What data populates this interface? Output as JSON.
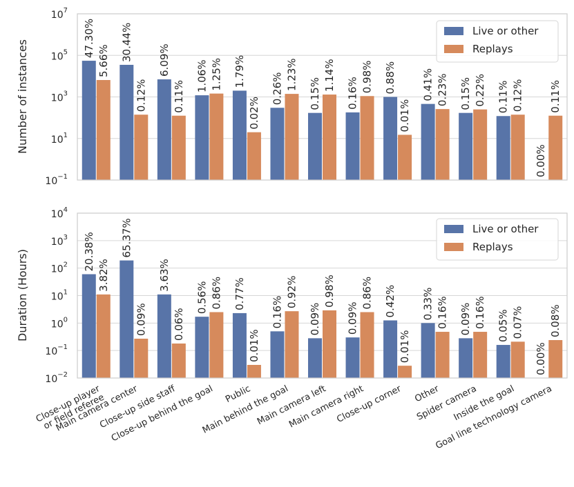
{
  "chart_data": [
    {
      "type": "bar",
      "yscale": "log",
      "ylabel": "Number of instances",
      "ylim": [
        0.1,
        10000000
      ],
      "yticks": [
        {
          "base": "10",
          "exp": "−1",
          "value": 0.1
        },
        {
          "base": "10",
          "exp": "1",
          "value": 10
        },
        {
          "base": "10",
          "exp": "3",
          "value": 1000
        },
        {
          "base": "10",
          "exp": "5",
          "value": 100000
        },
        {
          "base": "10",
          "exp": "7",
          "value": 10000000
        }
      ],
      "legend_position": "top-right",
      "series": [
        {
          "name": "Live or other",
          "color": "#5874a8",
          "values": [
            55000,
            35000,
            7000,
            1200,
            2000,
            300,
            170,
            180,
            1000,
            460,
            170,
            120,
            0
          ],
          "labels": [
            "47.30%",
            "30.44%",
            "6.09%",
            "1.06%",
            "1.79%",
            "0.26%",
            "0.15%",
            "0.16%",
            "0.88%",
            "0.41%",
            "0.15%",
            "0.11%",
            "0.00%"
          ]
        },
        {
          "name": "Replays",
          "color": "#d68a5c",
          "values": [
            6500,
            140,
            125,
            1450,
            20,
            1400,
            1300,
            1100,
            15,
            260,
            250,
            140,
            125
          ],
          "labels": [
            "5.66%",
            "0.12%",
            "0.11%",
            "1.25%",
            "0.02%",
            "1.23%",
            "1.14%",
            "0.98%",
            "0.01%",
            "0.23%",
            "0.22%",
            "0.12%",
            "0.11%"
          ]
        }
      ]
    },
    {
      "type": "bar",
      "yscale": "log",
      "ylabel": "Duration (Hours)",
      "ylim": [
        0.01,
        10000
      ],
      "yticks": [
        {
          "base": "10",
          "exp": "−2",
          "value": 0.01
        },
        {
          "base": "10",
          "exp": "−1",
          "value": 0.1
        },
        {
          "base": "10",
          "exp": "0",
          "value": 1
        },
        {
          "base": "10",
          "exp": "1",
          "value": 10
        },
        {
          "base": "10",
          "exp": "2",
          "value": 100
        },
        {
          "base": "10",
          "exp": "3",
          "value": 1000
        },
        {
          "base": "10",
          "exp": "4",
          "value": 10000
        }
      ],
      "legend_position": "top-right",
      "series": [
        {
          "name": "Live or other",
          "color": "#5874a8",
          "values": [
            60,
            190,
            11,
            1.7,
            2.3,
            0.5,
            0.28,
            0.3,
            1.25,
            1.0,
            0.28,
            0.16,
            0
          ],
          "labels": [
            "20.38%",
            "65.37%",
            "3.63%",
            "0.56%",
            "0.77%",
            "0.16%",
            "0.09%",
            "0.09%",
            "0.42%",
            "0.33%",
            "0.09%",
            "0.05%",
            "0.00%"
          ]
        },
        {
          "name": "Replays",
          "color": "#d68a5c",
          "values": [
            11,
            0.27,
            0.18,
            2.5,
            0.03,
            2.7,
            2.9,
            2.5,
            0.028,
            0.48,
            0.48,
            0.21,
            0.24
          ],
          "labels": [
            "3.82%",
            "0.09%",
            "0.06%",
            "0.86%",
            "0.01%",
            "0.92%",
            "0.98%",
            "0.86%",
            "0.01%",
            "0.16%",
            "0.16%",
            "0.07%",
            "0.08%"
          ]
        }
      ]
    }
  ],
  "categories": [
    [
      "Close-up player",
      "or field referee"
    ],
    [
      "Main camera center"
    ],
    [
      "Close-up side staff"
    ],
    [
      "Close-up behind the goal"
    ],
    [
      "Public"
    ],
    [
      "Main behind the goal"
    ],
    [
      "Main camera left"
    ],
    [
      "Main camera right"
    ],
    [
      "Close-up corner"
    ],
    [
      "Other"
    ],
    [
      "Spider camera"
    ],
    [
      "Inside the goal"
    ],
    [
      "Goal line technology camera"
    ]
  ]
}
